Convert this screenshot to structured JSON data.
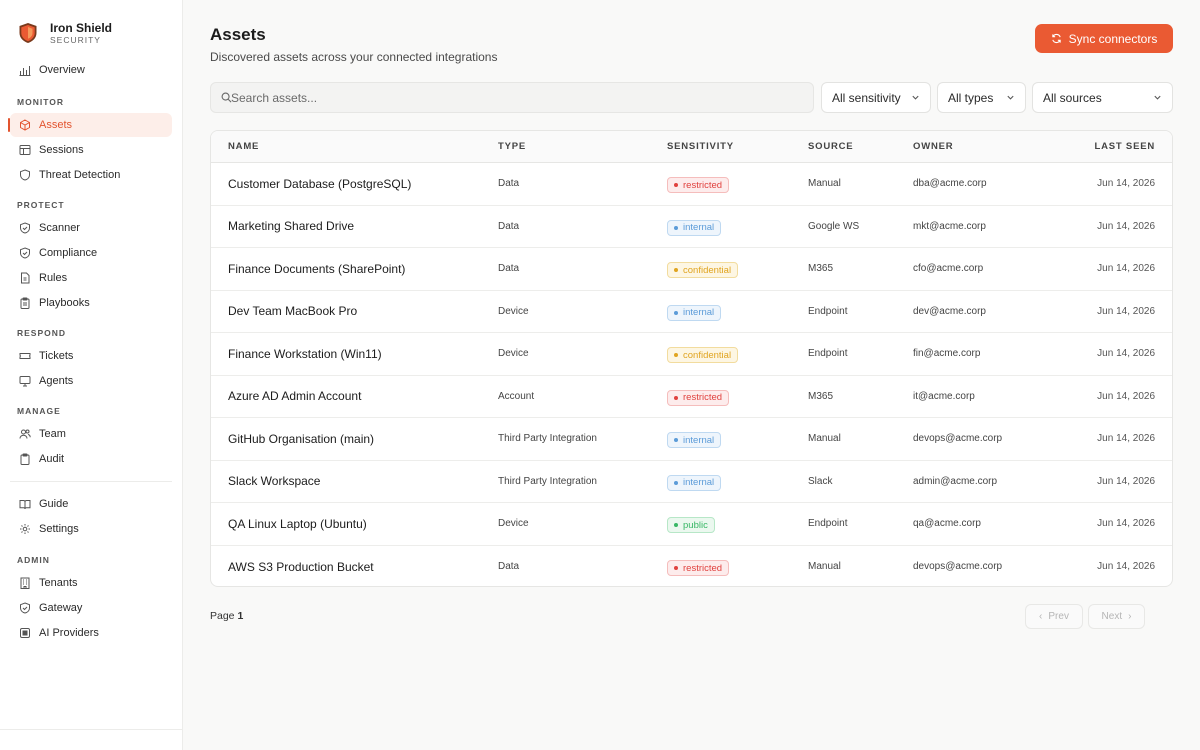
{
  "brand": {
    "name": "Iron Shield",
    "sub": "SECURITY"
  },
  "sidebar": {
    "overview": {
      "label": "Overview",
      "icon": "bar-chart-icon"
    },
    "sections": [
      {
        "title": "MONITOR",
        "items": [
          {
            "label": "Assets",
            "icon": "cube-icon",
            "active": true
          },
          {
            "label": "Sessions",
            "icon": "table-icon"
          },
          {
            "label": "Threat Detection",
            "icon": "shield-icon"
          }
        ]
      },
      {
        "title": "PROTECT",
        "items": [
          {
            "label": "Scanner",
            "icon": "shield-check-icon"
          },
          {
            "label": "Compliance",
            "icon": "shield-check-icon"
          },
          {
            "label": "Rules",
            "icon": "document-icon"
          },
          {
            "label": "Playbooks",
            "icon": "clipboard-icon"
          }
        ]
      },
      {
        "title": "RESPOND",
        "items": [
          {
            "label": "Tickets",
            "icon": "ticket-icon"
          },
          {
            "label": "Agents",
            "icon": "monitor-icon"
          }
        ]
      },
      {
        "title": "MANAGE",
        "items": [
          {
            "label": "Team",
            "icon": "users-icon"
          },
          {
            "label": "Audit",
            "icon": "clipboard-icon"
          }
        ]
      }
    ],
    "extra": [
      {
        "label": "Guide",
        "icon": "book-icon"
      },
      {
        "label": "Settings",
        "icon": "gear-icon"
      }
    ],
    "admin": {
      "title": "ADMIN",
      "items": [
        {
          "label": "Tenants",
          "icon": "building-icon"
        },
        {
          "label": "Gateway",
          "icon": "shield-check-icon"
        },
        {
          "label": "AI Providers",
          "icon": "chip-icon"
        }
      ]
    }
  },
  "header": {
    "title": "Assets",
    "subtitle": "Discovered assets across your connected integrations",
    "sync_label": "Sync connectors"
  },
  "filters": {
    "search_placeholder": "Search assets...",
    "sensitivity": "All sensitivity",
    "types": "All types",
    "sources": "All sources"
  },
  "table": {
    "columns": {
      "name": "NAME",
      "type": "TYPE",
      "sensitivity": "SENSITIVITY",
      "source": "SOURCE",
      "owner": "OWNER",
      "last_seen": "LAST SEEN"
    },
    "rows": [
      {
        "name": "Customer Database (PostgreSQL)",
        "type": "Data",
        "sensitivity": "restricted",
        "source": "Manual",
        "owner": "dba@acme.corp",
        "last_seen": "Jun 14, 2026"
      },
      {
        "name": "Marketing Shared Drive",
        "type": "Data",
        "sensitivity": "internal",
        "source": "Google WS",
        "owner": "mkt@acme.corp",
        "last_seen": "Jun 14, 2026"
      },
      {
        "name": "Finance Documents (SharePoint)",
        "type": "Data",
        "sensitivity": "confidential",
        "source": "M365",
        "owner": "cfo@acme.corp",
        "last_seen": "Jun 14, 2026"
      },
      {
        "name": "Dev Team MacBook Pro",
        "type": "Device",
        "sensitivity": "internal",
        "source": "Endpoint",
        "owner": "dev@acme.corp",
        "last_seen": "Jun 14, 2026"
      },
      {
        "name": "Finance Workstation (Win11)",
        "type": "Device",
        "sensitivity": "confidential",
        "source": "Endpoint",
        "owner": "fin@acme.corp",
        "last_seen": "Jun 14, 2026"
      },
      {
        "name": "Azure AD Admin Account",
        "type": "Account",
        "sensitivity": "restricted",
        "source": "M365",
        "owner": "it@acme.corp",
        "last_seen": "Jun 14, 2026"
      },
      {
        "name": "GitHub Organisation (main)",
        "type": "Third Party Integration",
        "sensitivity": "internal",
        "source": "Manual",
        "owner": "devops@acme.corp",
        "last_seen": "Jun 14, 2026"
      },
      {
        "name": "Slack Workspace",
        "type": "Third Party Integration",
        "sensitivity": "internal",
        "source": "Slack",
        "owner": "admin@acme.corp",
        "last_seen": "Jun 14, 2026"
      },
      {
        "name": "QA Linux Laptop (Ubuntu)",
        "type": "Device",
        "sensitivity": "public",
        "source": "Endpoint",
        "owner": "qa@acme.corp",
        "last_seen": "Jun 14, 2026"
      },
      {
        "name": "AWS S3 Production Bucket",
        "type": "Data",
        "sensitivity": "restricted",
        "source": "Manual",
        "owner": "devops@acme.corp",
        "last_seen": "Jun 14, 2026"
      }
    ]
  },
  "pagination": {
    "page_label": "Page",
    "page_number": "1",
    "prev": "Prev",
    "next": "Next"
  },
  "colors": {
    "accent": "#ea5a33",
    "restricted": "#e0413e",
    "internal": "#5b9bd8",
    "confidential": "#e0a420",
    "public": "#38b765"
  }
}
